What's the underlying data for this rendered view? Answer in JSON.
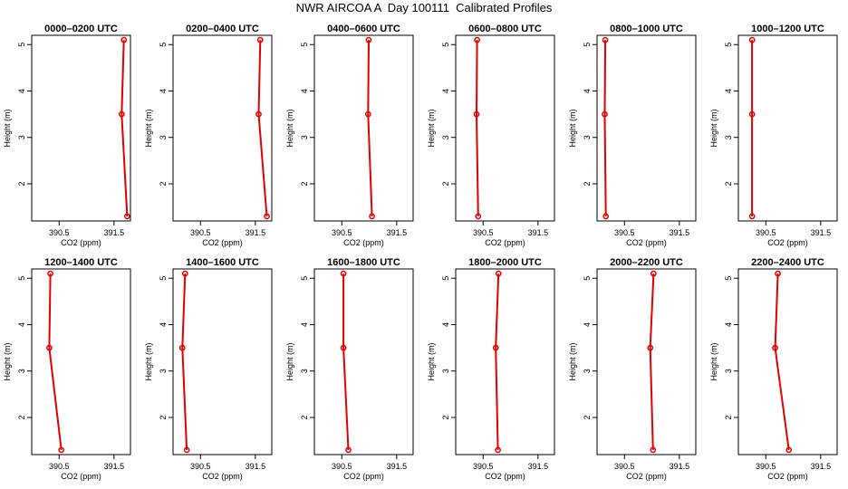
{
  "title": "NWR AIRCOA A  Day 100111  Calibrated Profiles",
  "chart_data": {
    "type": "line",
    "xlabel": "CO2 (ppm)",
    "ylabel": "Height (m)",
    "xlim": [
      390.0,
      391.8
    ],
    "ylim": [
      1.2,
      5.2
    ],
    "xticks": [
      390.5,
      391.5
    ],
    "xtick_labels": [
      "390.5",
      "391.5"
    ],
    "yticks": [
      2,
      3,
      4,
      5
    ],
    "ytick_labels": [
      "2",
      "3",
      "4",
      "5"
    ],
    "line_color": "#e00000",
    "marker": "circle",
    "panels": [
      {
        "title": "0000–0200 UTC",
        "points": [
          {
            "co2": 391.74,
            "height": 1.3
          },
          {
            "co2": 391.64,
            "height": 3.5
          },
          {
            "co2": 391.68,
            "height": 5.1
          }
        ]
      },
      {
        "title": "0200–0400 UTC",
        "points": [
          {
            "co2": 391.71,
            "height": 1.3
          },
          {
            "co2": 391.56,
            "height": 3.5
          },
          {
            "co2": 391.59,
            "height": 5.1
          }
        ]
      },
      {
        "title": "0400–0600 UTC",
        "points": [
          {
            "co2": 391.05,
            "height": 1.3
          },
          {
            "co2": 390.98,
            "height": 3.5
          },
          {
            "co2": 390.99,
            "height": 5.1
          }
        ]
      },
      {
        "title": "0600–0800 UTC",
        "points": [
          {
            "co2": 390.41,
            "height": 1.3
          },
          {
            "co2": 390.38,
            "height": 3.5
          },
          {
            "co2": 390.39,
            "height": 5.1
          }
        ]
      },
      {
        "title": "0800–1000 UTC",
        "points": [
          {
            "co2": 390.16,
            "height": 1.3
          },
          {
            "co2": 390.14,
            "height": 3.5
          },
          {
            "co2": 390.15,
            "height": 5.1
          }
        ]
      },
      {
        "title": "1000–1200 UTC",
        "points": [
          {
            "co2": 390.25,
            "height": 1.3
          },
          {
            "co2": 390.25,
            "height": 3.5
          },
          {
            "co2": 390.25,
            "height": 5.1
          }
        ]
      },
      {
        "title": "1200–1400 UTC",
        "points": [
          {
            "co2": 390.54,
            "height": 1.3
          },
          {
            "co2": 390.32,
            "height": 3.5
          },
          {
            "co2": 390.34,
            "height": 5.1
          }
        ]
      },
      {
        "title": "1400–1600 UTC",
        "points": [
          {
            "co2": 390.25,
            "height": 1.3
          },
          {
            "co2": 390.17,
            "height": 3.5
          },
          {
            "co2": 390.22,
            "height": 5.1
          }
        ]
      },
      {
        "title": "1600–1800 UTC",
        "points": [
          {
            "co2": 390.62,
            "height": 1.3
          },
          {
            "co2": 390.53,
            "height": 3.5
          },
          {
            "co2": 390.53,
            "height": 5.1
          }
        ]
      },
      {
        "title": "1800–2000 UTC",
        "points": [
          {
            "co2": 390.77,
            "height": 1.3
          },
          {
            "co2": 390.73,
            "height": 3.5
          },
          {
            "co2": 390.78,
            "height": 5.1
          }
        ]
      },
      {
        "title": "2000–2200 UTC",
        "points": [
          {
            "co2": 391.02,
            "height": 1.3
          },
          {
            "co2": 390.97,
            "height": 3.5
          },
          {
            "co2": 391.03,
            "height": 5.1
          }
        ]
      },
      {
        "title": "2200–2400 UTC",
        "points": [
          {
            "co2": 390.92,
            "height": 1.3
          },
          {
            "co2": 390.67,
            "height": 3.5
          },
          {
            "co2": 390.72,
            "height": 5.1
          }
        ]
      }
    ]
  }
}
